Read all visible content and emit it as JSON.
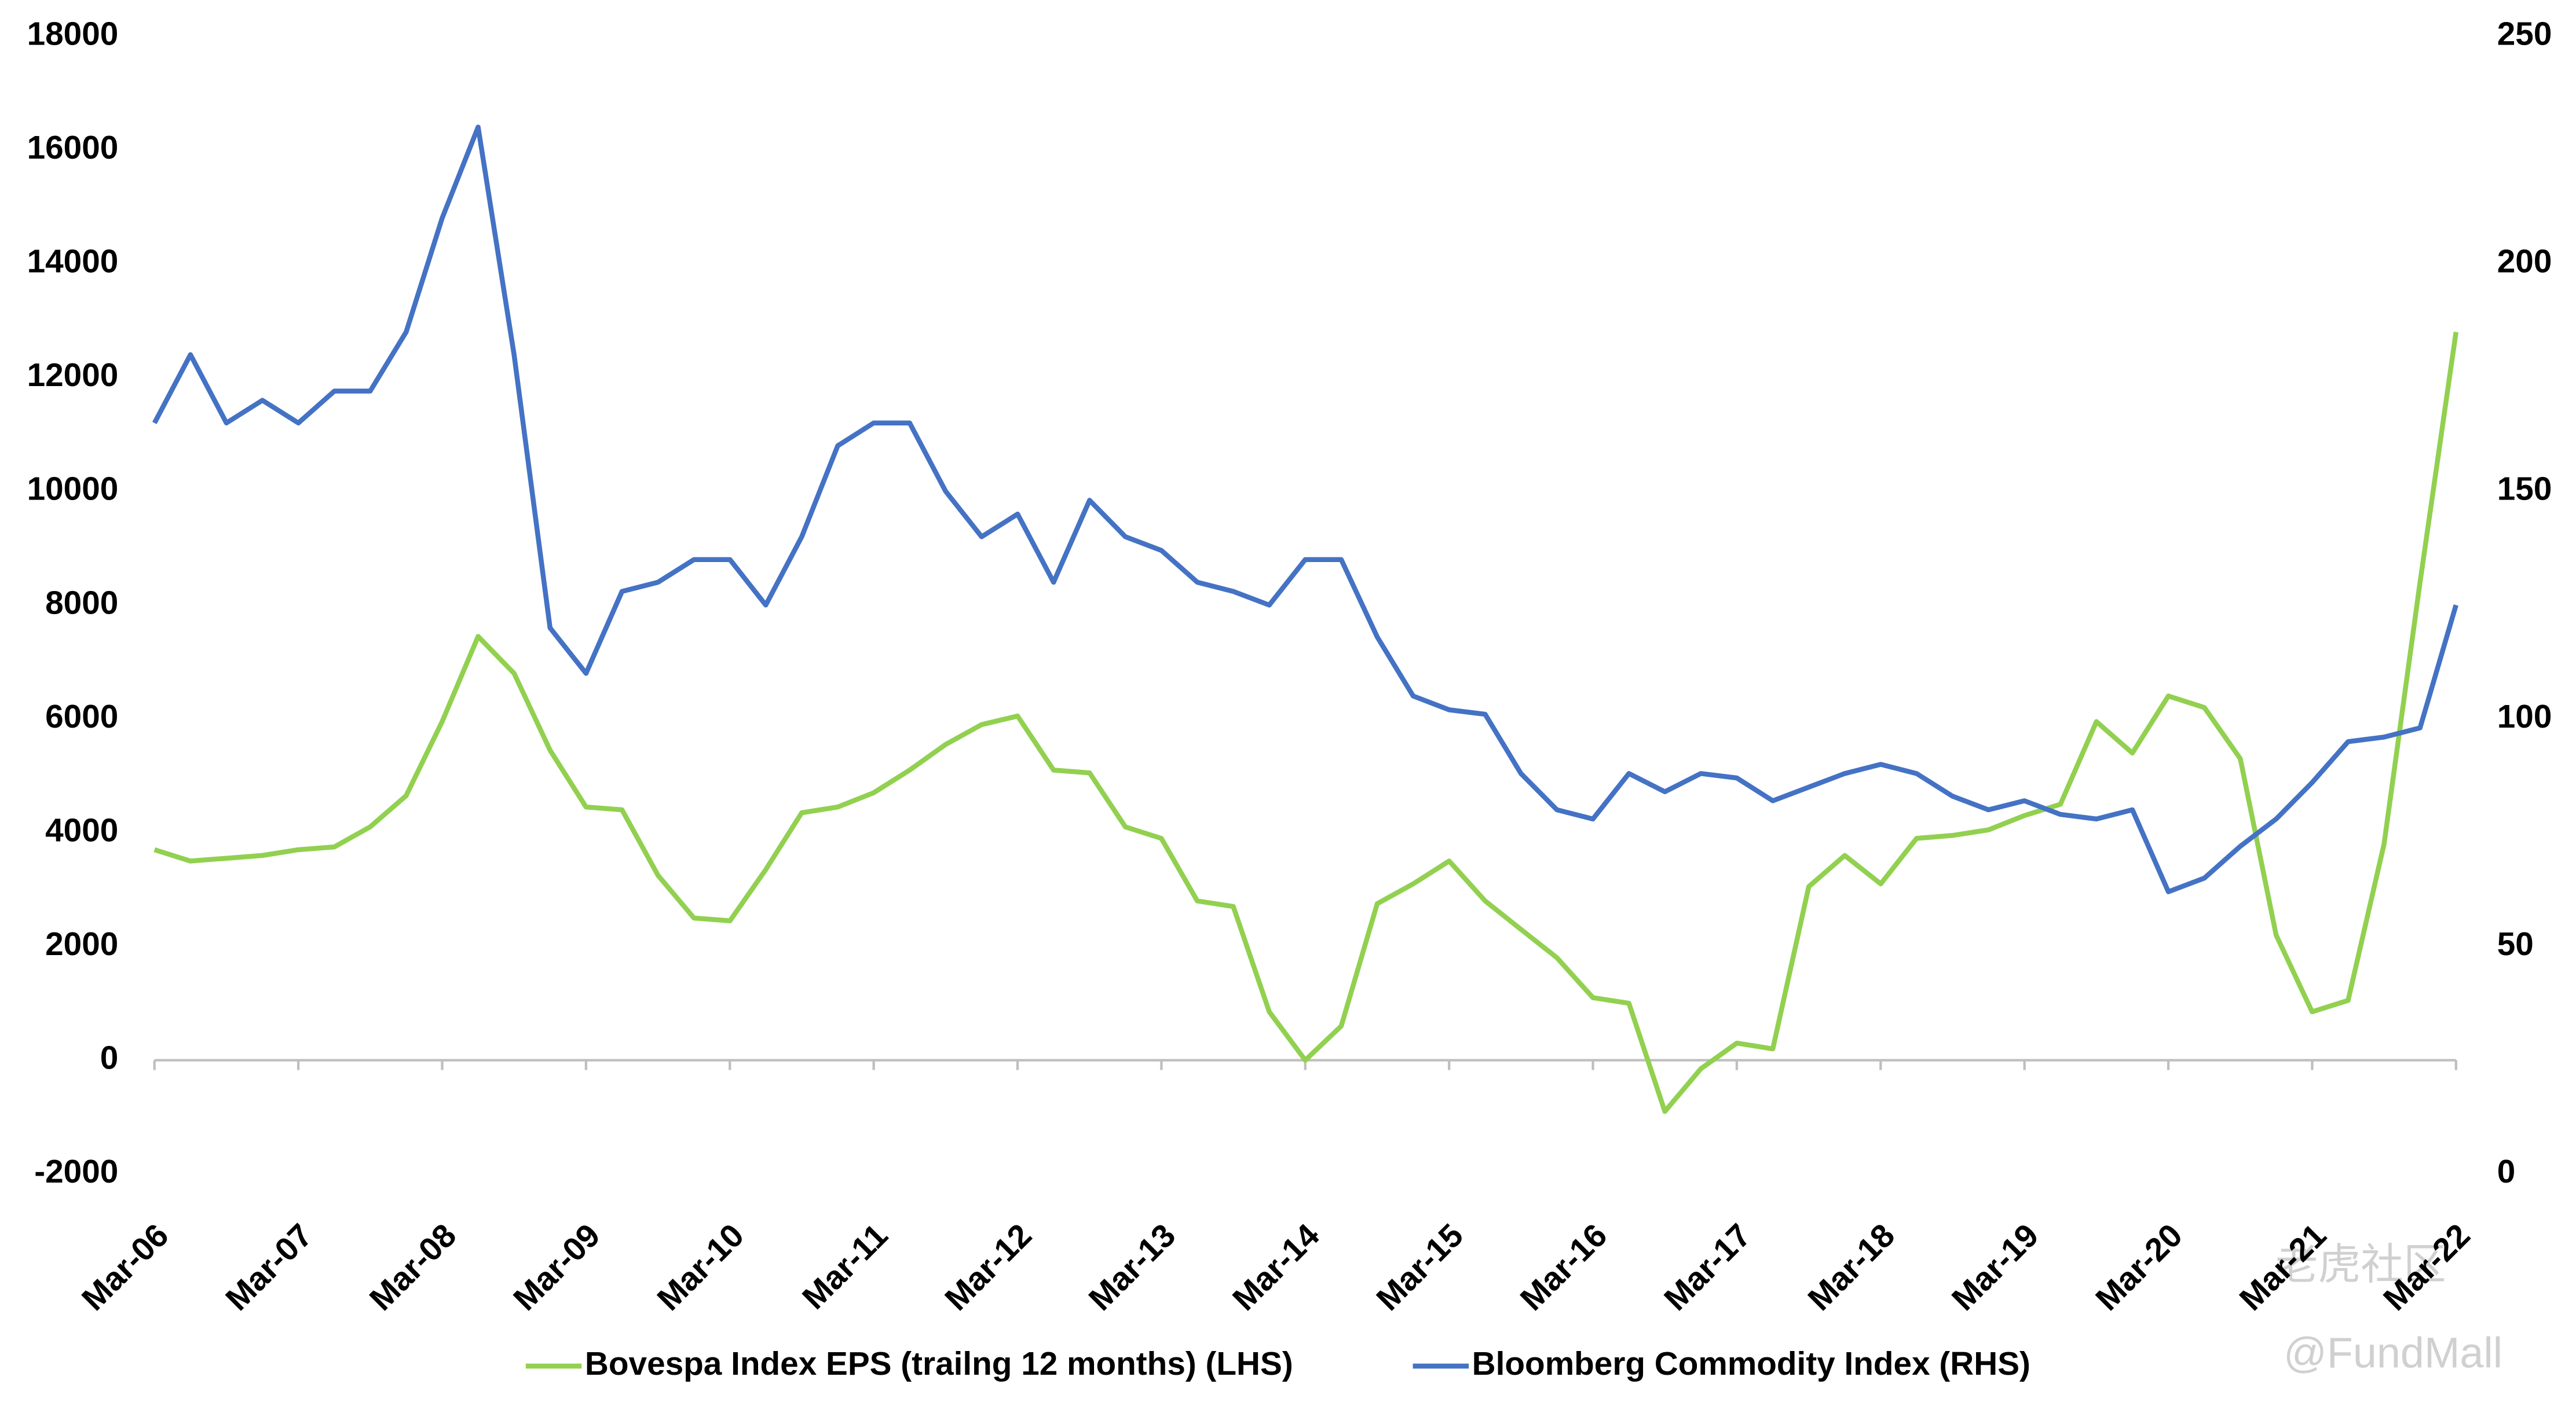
{
  "chart_data": {
    "type": "line",
    "x": [
      "2006-03",
      "2006-06",
      "2006-09",
      "2006-12",
      "2007-03",
      "2007-06",
      "2007-09",
      "2007-12",
      "2008-03",
      "2008-06",
      "2008-09",
      "2008-12",
      "2009-03",
      "2009-06",
      "2009-09",
      "2009-12",
      "2010-03",
      "2010-06",
      "2010-09",
      "2010-12",
      "2011-03",
      "2011-06",
      "2011-09",
      "2011-12",
      "2012-03",
      "2012-06",
      "2012-09",
      "2012-12",
      "2013-03",
      "2013-06",
      "2013-09",
      "2013-12",
      "2014-03",
      "2014-06",
      "2014-09",
      "2014-12",
      "2015-03",
      "2015-06",
      "2015-09",
      "2015-12",
      "2016-03",
      "2016-06",
      "2016-09",
      "2016-12",
      "2017-03",
      "2017-06",
      "2017-09",
      "2017-12",
      "2018-03",
      "2018-06",
      "2018-09",
      "2018-12",
      "2019-03",
      "2019-06",
      "2019-09",
      "2019-12",
      "2020-03",
      "2020-06",
      "2020-09",
      "2020-12",
      "2021-03",
      "2021-06",
      "2021-09",
      "2021-12",
      "2022-03"
    ],
    "series": [
      {
        "name": "Bovespa Index EPS (trailng 12 months) (LHS)",
        "color": "#92d050",
        "values": [
          3700,
          3500,
          3550,
          3600,
          3700,
          3750,
          4100,
          4650,
          5950,
          7450,
          6800,
          5450,
          4450,
          4400,
          3250,
          2500,
          2450,
          3350,
          4350,
          4450,
          4700,
          5100,
          5550,
          5900,
          6050,
          5100,
          5050,
          4100,
          3900,
          2800,
          2700,
          850,
          0,
          600,
          2750,
          3100,
          3500,
          2800,
          2300,
          1800,
          1100,
          1000,
          -900,
          -150,
          300,
          200,
          3050,
          3600,
          3100,
          3900,
          3950,
          4050,
          4300,
          4500,
          5950,
          5400,
          6400,
          6200,
          5300,
          2200,
          850,
          1050,
          3800,
          8400,
          12800
        ]
      },
      {
        "name": "Bloomberg Commodity Index (RHS)",
        "color": "#4472c4",
        "axis": "y2",
        "values": [
          165,
          180,
          165,
          170,
          165,
          172,
          172,
          185,
          210,
          230,
          180,
          120,
          110,
          128,
          130,
          135,
          135,
          125,
          140,
          160,
          165,
          165,
          150,
          140,
          145,
          130,
          148,
          140,
          137,
          130,
          128,
          125,
          135,
          135,
          118,
          105,
          102,
          101,
          88,
          80,
          78,
          88,
          84,
          88,
          87,
          82,
          85,
          88,
          90,
          88,
          83,
          80,
          82,
          79,
          78,
          80,
          62,
          65,
          72,
          78,
          86,
          95,
          96,
          98,
          125
        ]
      }
    ],
    "xlim": [
      "2006-03",
      "2022-03"
    ],
    "xticks": [
      {
        "value": "2006-03",
        "label": "Mar-06"
      },
      {
        "value": "2007-03",
        "label": "Mar-07"
      },
      {
        "value": "2008-03",
        "label": "Mar-08"
      },
      {
        "value": "2009-03",
        "label": "Mar-09"
      },
      {
        "value": "2010-03",
        "label": "Mar-10"
      },
      {
        "value": "2011-03",
        "label": "Mar-11"
      },
      {
        "value": "2012-03",
        "label": "Mar-12"
      },
      {
        "value": "2013-03",
        "label": "Mar-13"
      },
      {
        "value": "2014-03",
        "label": "Mar-14"
      },
      {
        "value": "2015-03",
        "label": "Mar-15"
      },
      {
        "value": "2016-03",
        "label": "Mar-16"
      },
      {
        "value": "2017-03",
        "label": "Mar-17"
      },
      {
        "value": "2018-03",
        "label": "Mar-18"
      },
      {
        "value": "2019-03",
        "label": "Mar-19"
      },
      {
        "value": "2020-03",
        "label": "Mar-20"
      },
      {
        "value": "2021-03",
        "label": "Mar-21"
      },
      {
        "value": "2022-03",
        "label": "Mar-22"
      }
    ],
    "ylim": [
      -2000,
      18000
    ],
    "yticks": [
      -2000,
      0,
      2000,
      4000,
      6000,
      8000,
      10000,
      12000,
      14000,
      16000,
      18000
    ],
    "y2lim": [
      0,
      250
    ],
    "y2ticks": [
      0,
      50,
      100,
      150,
      200,
      250
    ],
    "legend": "bottom",
    "watermark": [
      "老虎社区",
      "@FundMall"
    ]
  }
}
